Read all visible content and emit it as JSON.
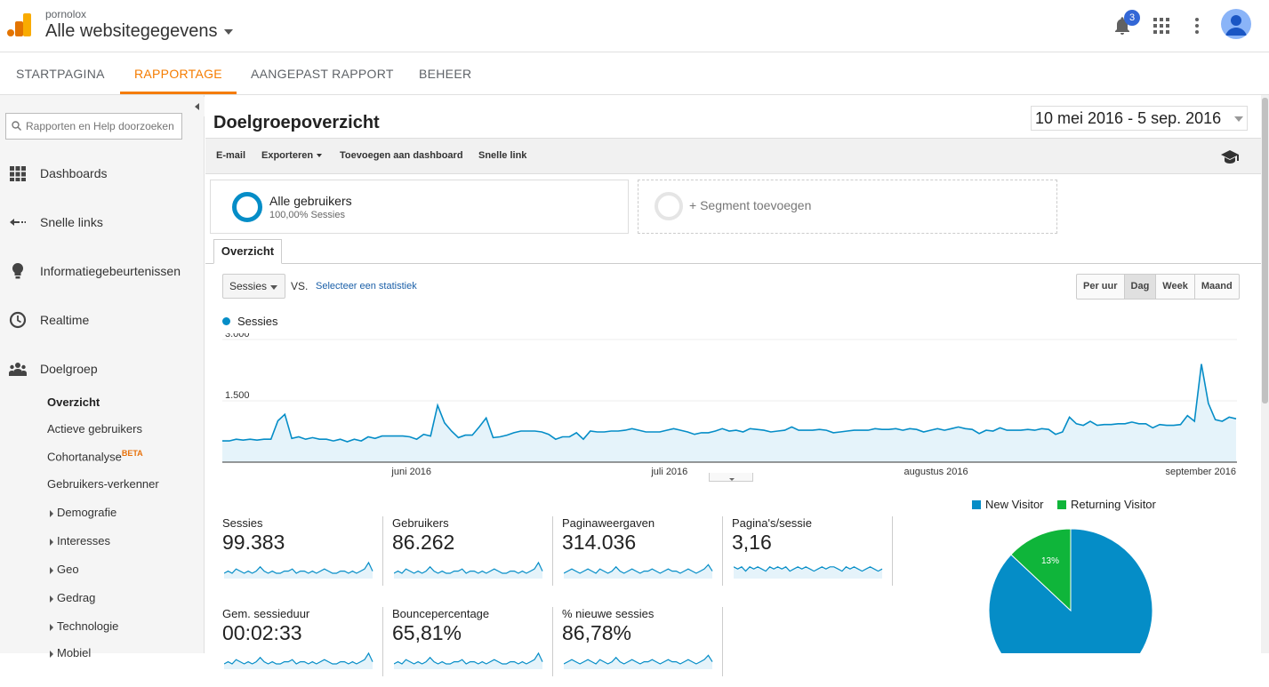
{
  "header": {
    "account": "pornolox",
    "property": "Alle websitegegevens",
    "notification_count": "3",
    "icons": [
      "analytics-logo",
      "bell-icon",
      "apps-grid-icon",
      "more-vert-icon",
      "avatar"
    ]
  },
  "main_tabs": [
    "STARTPAGINA",
    "RAPPORTAGE",
    "AANGEPAST RAPPORT",
    "BEHEER"
  ],
  "active_tab": "RAPPORTAGE",
  "sidebar": {
    "search_placeholder": "Rapporten en Help doorzoeken",
    "items": [
      {
        "label": "Dashboards",
        "icon": "dashboard-grid-icon"
      },
      {
        "label": "Snelle links",
        "icon": "arrow-left-icon"
      },
      {
        "label": "Informatiegebeurtenissen",
        "icon": "lightbulb-icon"
      },
      {
        "label": "Realtime",
        "icon": "clock-icon"
      },
      {
        "label": "Doelgroep",
        "icon": "people-icon"
      }
    ],
    "sub_items": [
      "Overzicht",
      "Actieve gebruikers",
      "Cohortanalyse",
      "Gebruikers-verkenner"
    ],
    "beta_label": "BETA",
    "sub_sub_items": [
      "Demografie",
      "Interesses",
      "Geo",
      "Gedrag",
      "Technologie",
      "Mobiel"
    ]
  },
  "content": {
    "title": "Doelgroepoverzicht",
    "date_range": "10 mei 2016 - 5 sep. 2016",
    "toolbar": {
      "email": "E-mail",
      "export": "Exporteren",
      "add_dashboard": "Toevoegen aan dashboard",
      "quick_link": "Snelle link"
    },
    "segments": {
      "all_users": "Alle gebruikers",
      "all_users_sub": "100,00% Sessies",
      "add_segment": "+ Segment toevoegen"
    },
    "subtab": "Overzicht",
    "metric_selector": "Sessies",
    "vs": "VS.",
    "select_metric": "Selecteer een statistiek",
    "granularity": [
      "Per uur",
      "Dag",
      "Week",
      "Maand"
    ],
    "granularity_active": "Dag",
    "legend": "Sessies"
  },
  "chart_data": [
    {
      "type": "area",
      "series": [
        {
          "name": "Sessies",
          "color": "#058dc7"
        }
      ],
      "y_ticks": [
        "3.000",
        "1.500"
      ],
      "ylim": [
        0,
        3000
      ],
      "x_ticks": [
        "juni 2016",
        "juli 2016",
        "augustus 2016",
        "september 2016"
      ],
      "x_range": [
        "2016-05-10",
        "2016-09-05"
      ],
      "values": [
        520,
        520,
        560,
        540,
        560,
        540,
        560,
        560,
        1010,
        1170,
        580,
        620,
        560,
        600,
        560,
        560,
        520,
        560,
        500,
        560,
        520,
        620,
        580,
        640,
        640,
        640,
        640,
        620,
        560,
        680,
        640,
        1390,
        960,
        760,
        600,
        660,
        660,
        860,
        1080,
        600,
        620,
        660,
        720,
        760,
        760,
        760,
        740,
        680,
        560,
        620,
        620,
        720,
        560,
        760,
        740,
        740,
        760,
        760,
        780,
        820,
        780,
        740,
        740,
        740,
        780,
        820,
        780,
        740,
        680,
        720,
        720,
        760,
        820,
        760,
        780,
        740,
        820,
        800,
        780,
        740,
        760,
        780,
        860,
        780,
        780,
        780,
        800,
        780,
        720,
        740,
        760,
        780,
        780,
        780,
        820,
        800,
        800,
        820,
        780,
        820,
        800,
        740,
        780,
        820,
        780,
        820,
        860,
        820,
        800,
        700,
        780,
        760,
        840,
        780,
        780,
        780,
        800,
        780,
        820,
        800,
        680,
        740,
        1100,
        940,
        900,
        1000,
        900,
        920,
        920,
        940,
        940,
        980,
        940,
        940,
        840,
        920,
        900,
        900,
        920,
        1140,
        1000,
        2400,
        1440,
        1040,
        1000,
        1100,
        1060
      ]
    },
    {
      "type": "pie",
      "categories": [
        "New Visitor",
        "Returning Visitor"
      ],
      "values": [
        87,
        13
      ],
      "colors": [
        "#058dc7",
        "#0fb53a"
      ],
      "labels": [
        "",
        "13%"
      ],
      "legend": "top"
    }
  ],
  "kpis": [
    {
      "label": "Sessies",
      "value": "99.383"
    },
    {
      "label": "Gebruikers",
      "value": "86.262"
    },
    {
      "label": "Paginaweergaven",
      "value": "314.036"
    },
    {
      "label": "Pagina's/sessie",
      "value": "3,16"
    },
    {
      "label": "Gem. sessieduur",
      "value": "00:02:33"
    },
    {
      "label": "Bouncepercentage",
      "value": "65,81%"
    },
    {
      "label": "% nieuwe sessies",
      "value": "86,78%"
    }
  ]
}
